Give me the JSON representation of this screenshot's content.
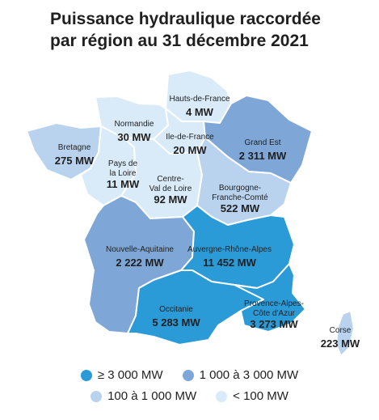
{
  "title": {
    "line1": "Puissance hydraulique raccordée",
    "line2": "par région au 31 décembre 2021"
  },
  "colors": {
    "cat1": "#2b9bd8",
    "cat2": "#7ea7d8",
    "cat3": "#b9d3ef",
    "cat4": "#d9ebf8"
  },
  "regions": [
    {
      "id": "hauts-de-france",
      "name_lines": [
        "Hauts-de-France"
      ],
      "value": "4 MW",
      "category": "cat4"
    },
    {
      "id": "normandie",
      "name_lines": [
        "Normandie"
      ],
      "value": "30 MW",
      "category": "cat4"
    },
    {
      "id": "ile-de-france",
      "name_lines": [
        "Ile-de-France"
      ],
      "value": "20 MW",
      "category": "cat4"
    },
    {
      "id": "grand-est",
      "name_lines": [
        "Grand Est"
      ],
      "value": "2 311 MW",
      "category": "cat2"
    },
    {
      "id": "bretagne",
      "name_lines": [
        "Bretagne"
      ],
      "value": "275 MW",
      "category": "cat3"
    },
    {
      "id": "pays-de-la-loire",
      "name_lines": [
        "Pays de",
        "la Loire"
      ],
      "value": "11 MW",
      "category": "cat4"
    },
    {
      "id": "centre-val-de-loire",
      "name_lines": [
        "Centre-",
        "Val de Loire"
      ],
      "value": "92 MW",
      "category": "cat4"
    },
    {
      "id": "bourgogne-franche-comte",
      "name_lines": [
        "Bourgogne-",
        "Franche-Comté"
      ],
      "value": "522 MW",
      "category": "cat3"
    },
    {
      "id": "nouvelle-aquitaine",
      "name_lines": [
        "Nouvelle-Aquitaine"
      ],
      "value": "2 222 MW",
      "category": "cat2"
    },
    {
      "id": "auvergne-rhone-alpes",
      "name_lines": [
        "Auvergne-Rhône-Alpes"
      ],
      "value": "11 452 MW",
      "category": "cat1"
    },
    {
      "id": "occitanie",
      "name_lines": [
        "Occitanie"
      ],
      "value": "5 283 MW",
      "category": "cat1"
    },
    {
      "id": "provence-alpes-cote-d-azur",
      "name_lines": [
        "Provence-Alpes-",
        "Côte d'Azur"
      ],
      "value": "3 273 MW",
      "category": "cat1"
    },
    {
      "id": "corse",
      "name_lines": [
        "Corse"
      ],
      "value": "223 MW",
      "category": "cat3"
    }
  ],
  "legend": [
    {
      "label": "≥ 3 000 MW",
      "category": "cat1"
    },
    {
      "label": "1 000 à 3 000 MW",
      "category": "cat2"
    },
    {
      "label": "100 à 1 000 MW",
      "category": "cat3"
    },
    {
      "label": "< 100 MW",
      "category": "cat4"
    }
  ]
}
